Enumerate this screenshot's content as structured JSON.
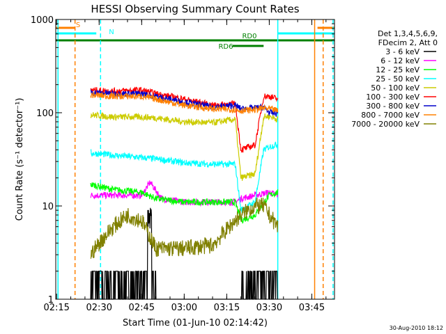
{
  "chart_data": {
    "type": "line",
    "title": "HESSI Observing Summary Count Rates",
    "xlabel": "Start Time (01-Jun-10 02:14:42)",
    "ylabel": "Count Rate (s⁻¹ detector⁻¹)",
    "y_scale": "log",
    "ylim": [
      1,
      1000
    ],
    "xlim": [
      "02:14:42",
      "03:53:00"
    ],
    "x_ticks": [
      "02:15",
      "02:30",
      "02:45",
      "03:00",
      "03:15",
      "03:30",
      "03:45"
    ],
    "y_ticks": [
      "1",
      "10",
      "100",
      "1000"
    ],
    "grid": false,
    "legend_position": "right",
    "legend_header": [
      "Det 1,3,4,5,6,9,",
      "FDecim 2, Att 0"
    ],
    "footer": "30-Aug-2010 18:12",
    "flags": [
      {
        "label": "S",
        "color": "#ff8000",
        "start": "02:14:42",
        "end": "02:21:30"
      },
      {
        "label": "N",
        "color": "#00ffff",
        "start": "02:14:42",
        "end": "02:29:00"
      },
      {
        "label": "RD0",
        "color": "#008000",
        "start": "02:14:42",
        "end": "03:53:00"
      },
      {
        "label": "RD6",
        "color": "#008000",
        "start": "03:17:00",
        "end": "03:28:00"
      },
      {
        "label": "",
        "color": "#00ffff",
        "start": "03:33:00",
        "end": "03:53:00"
      },
      {
        "label": "",
        "color": "#ff8000",
        "start": "03:47:00",
        "end": "03:53:00"
      }
    ],
    "vertical_markers": [
      {
        "time": "02:15:30",
        "color": "#00ffff",
        "style": "solid"
      },
      {
        "time": "02:21:30",
        "color": "#ff8000",
        "style": "dashed"
      },
      {
        "time": "02:30:30",
        "color": "#00ffff",
        "style": "dashed"
      },
      {
        "time": "03:33:00",
        "color": "#00ffff",
        "style": "solid"
      },
      {
        "time": "03:46:00",
        "color": "#ff8000",
        "style": "solid"
      },
      {
        "time": "03:49:00",
        "color": "#ff8000",
        "style": "dashed"
      },
      {
        "time": "03:52:30",
        "color": "#00ffff",
        "style": "dashed"
      }
    ],
    "data_window": [
      "02:26:30",
      "03:33:00"
    ],
    "series": [
      {
        "name": "3 - 6 keV",
        "color": "#000000",
        "x": [
          "02:27",
          "02:35",
          "02:45",
          "02:47",
          "02:50",
          "03:00",
          "03:10",
          "03:19",
          "03:20",
          "03:25",
          "03:30",
          "03:33"
        ],
        "y": [
          1.5,
          1.5,
          1.5,
          8,
          1,
          1,
          1,
          1,
          1.6,
          1.6,
          1.6,
          1.5
        ]
      },
      {
        "name": "6 - 12 keV",
        "color": "#ff00ff",
        "x": [
          "02:27",
          "02:35",
          "02:45",
          "02:48",
          "02:52",
          "03:00",
          "03:10",
          "03:18",
          "03:20",
          "03:25",
          "03:30",
          "03:33"
        ],
        "y": [
          13,
          13,
          13,
          18,
          12,
          11,
          11,
          11,
          12,
          13,
          14,
          13
        ]
      },
      {
        "name": "12 - 25 keV",
        "color": "#00ff00",
        "x": [
          "02:27",
          "02:35",
          "02:45",
          "02:50",
          "03:00",
          "03:10",
          "03:18",
          "03:20",
          "03:25",
          "03:30",
          "03:33"
        ],
        "y": [
          17,
          15,
          14,
          12,
          11,
          11,
          11,
          7,
          8,
          13,
          14
        ]
      },
      {
        "name": "25 - 50 keV",
        "color": "#00ffff",
        "x": [
          "02:27",
          "02:35",
          "02:45",
          "02:50",
          "03:00",
          "03:10",
          "03:18",
          "03:20",
          "03:25",
          "03:28",
          "03:30",
          "03:33"
        ],
        "y": [
          37,
          35,
          33,
          32,
          29,
          28,
          28,
          9,
          11,
          40,
          43,
          46
        ]
      },
      {
        "name": "50 - 100 keV",
        "color": "#cccc00",
        "x": [
          "02:27",
          "02:35",
          "02:45",
          "02:50",
          "03:00",
          "03:10",
          "03:18",
          "03:20",
          "03:25",
          "03:28",
          "03:30",
          "03:33"
        ],
        "y": [
          95,
          90,
          90,
          88,
          80,
          78,
          85,
          20,
          22,
          90,
          92,
          85
        ]
      },
      {
        "name": "100 - 300 keV",
        "color": "#ff0000",
        "x": [
          "02:27",
          "02:35",
          "02:45",
          "02:50",
          "03:00",
          "03:10",
          "03:18",
          "03:20",
          "03:25",
          "03:28",
          "03:30",
          "03:33"
        ],
        "y": [
          175,
          170,
          175,
          160,
          140,
          120,
          125,
          40,
          45,
          150,
          150,
          140
        ]
      },
      {
        "name": "300 - 800 keV",
        "color": "#0000cc",
        "x": [
          "02:27",
          "02:35",
          "02:45",
          "02:50",
          "03:00",
          "03:10",
          "03:18",
          "03:20",
          "03:25",
          "03:28",
          "03:30",
          "03:33"
        ],
        "y": [
          165,
          160,
          160,
          150,
          130,
          115,
          120,
          110,
          112,
          115,
          100,
          98
        ]
      },
      {
        "name": "800 - 7000 keV",
        "color": "#ff8000",
        "x": [
          "02:27",
          "02:35",
          "02:45",
          "02:50",
          "03:00",
          "03:10",
          "03:18",
          "03:20",
          "03:25",
          "03:28",
          "03:30",
          "03:33"
        ],
        "y": [
          155,
          150,
          150,
          140,
          120,
          110,
          108,
          105,
          108,
          112,
          110,
          105
        ]
      },
      {
        "name": "7000 - 20000 keV",
        "color": "#808000",
        "x": [
          "02:27",
          "02:30",
          "02:35",
          "02:40",
          "02:45",
          "02:50",
          "03:00",
          "03:10",
          "03:18",
          "03:20",
          "03:25",
          "03:28",
          "03:30",
          "03:33"
        ],
        "y": [
          3,
          4,
          6,
          8,
          7,
          3.5,
          3.5,
          3.8,
          7,
          8,
          10,
          10,
          8,
          6
        ]
      }
    ]
  }
}
